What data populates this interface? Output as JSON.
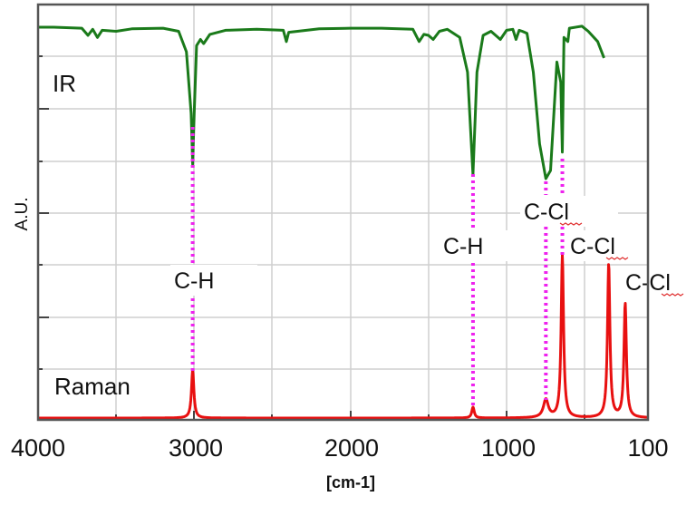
{
  "chart_data": {
    "type": "line",
    "title": "",
    "xlabel": "[cm-1]",
    "ylabel": "A.U.",
    "x_ticks": [
      4000,
      3000,
      2000,
      1000,
      100
    ],
    "x_tick_labels": [
      "4000",
      "3000",
      "2000",
      "1000",
      "100"
    ],
    "x_direction": "descending",
    "grid": true,
    "legend": null,
    "series": [
      {
        "name": "IR",
        "color": "#1a7a1a",
        "label": "IR",
        "description": "Transmittance-style IR spectrum (downward absorption dips)",
        "notable_dips_cm1": [
          3010,
          1215,
          750,
          645
        ],
        "points": [
          [
            4000,
            0.97
          ],
          [
            3900,
            0.97
          ],
          [
            3720,
            0.965
          ],
          [
            3680,
            0.93
          ],
          [
            3650,
            0.96
          ],
          [
            3620,
            0.92
          ],
          [
            3590,
            0.955
          ],
          [
            3500,
            0.95
          ],
          [
            3400,
            0.962
          ],
          [
            3200,
            0.965
          ],
          [
            3100,
            0.95
          ],
          [
            3050,
            0.85
          ],
          [
            3020,
            0.55
          ],
          [
            3010,
            0.3
          ],
          [
            3000,
            0.55
          ],
          [
            2985,
            0.88
          ],
          [
            2960,
            0.91
          ],
          [
            2940,
            0.89
          ],
          [
            2900,
            0.935
          ],
          [
            2800,
            0.955
          ],
          [
            2600,
            0.96
          ],
          [
            2430,
            0.955
          ],
          [
            2410,
            0.9
          ],
          [
            2395,
            0.945
          ],
          [
            2200,
            0.962
          ],
          [
            2000,
            0.965
          ],
          [
            1800,
            0.965
          ],
          [
            1600,
            0.96
          ],
          [
            1560,
            0.9
          ],
          [
            1530,
            0.935
          ],
          [
            1500,
            0.93
          ],
          [
            1470,
            0.91
          ],
          [
            1430,
            0.95
          ],
          [
            1380,
            0.96
          ],
          [
            1300,
            0.92
          ],
          [
            1250,
            0.75
          ],
          [
            1215,
            0.25
          ],
          [
            1190,
            0.75
          ],
          [
            1150,
            0.93
          ],
          [
            1100,
            0.95
          ],
          [
            1040,
            0.91
          ],
          [
            1000,
            0.955
          ],
          [
            960,
            0.96
          ],
          [
            940,
            0.91
          ],
          [
            920,
            0.955
          ],
          [
            900,
            0.95
          ],
          [
            870,
            0.94
          ],
          [
            830,
            0.75
          ],
          [
            790,
            0.4
          ],
          [
            750,
            0.23
          ],
          [
            720,
            0.27
          ],
          [
            680,
            0.8
          ],
          [
            655,
            0.7
          ],
          [
            645,
            0.36
          ],
          [
            635,
            0.92
          ],
          [
            610,
            0.9
          ],
          [
            600,
            0.965
          ],
          [
            520,
            0.975
          ],
          [
            480,
            0.95
          ],
          [
            420,
            0.9
          ],
          [
            380,
            0.82
          ]
        ]
      },
      {
        "name": "Raman",
        "color": "#e81010",
        "label": "Raman",
        "description": "Raman spectrum (upward peaks)",
        "peaks": [
          {
            "x_cm1": 3010,
            "height": 0.12
          },
          {
            "x_cm1": 1215,
            "height": 0.03
          },
          {
            "x_cm1": 750,
            "height": 0.05
          },
          {
            "x_cm1": 645,
            "height": 0.4
          },
          {
            "x_cm1": 350,
            "height": 0.38
          },
          {
            "x_cm1": 245,
            "height": 0.28
          }
        ]
      }
    ],
    "annotations": [
      {
        "text": "C-H",
        "x_cm1": 3010,
        "type": "dotted-link"
      },
      {
        "text": "C-H",
        "x_cm1": 1215,
        "type": "dotted-link"
      },
      {
        "text": "C-Cl",
        "x_cm1": 750,
        "type": "dotted-link"
      },
      {
        "text": "C-Cl",
        "x_cm1": 645,
        "type": "dotted-link"
      },
      {
        "text": "C-Cl",
        "x_cm1": 350,
        "type": "label"
      },
      {
        "text": "C-Cl",
        "x_cm1": 245,
        "type": "label"
      }
    ],
    "link_color": "#ee22ee"
  },
  "labels": {
    "ir": "IR",
    "raman": "Raman",
    "y_axis": "A.U.",
    "x_axis": "[cm-1]",
    "ch1": "C-H",
    "ch2": "C-H",
    "ccl1": "C-Cl",
    "ccl2": "C-Cl",
    "ccl3": "C-Cl",
    "ticks": [
      "4000",
      "3000",
      "2000",
      "1000",
      "100"
    ]
  }
}
